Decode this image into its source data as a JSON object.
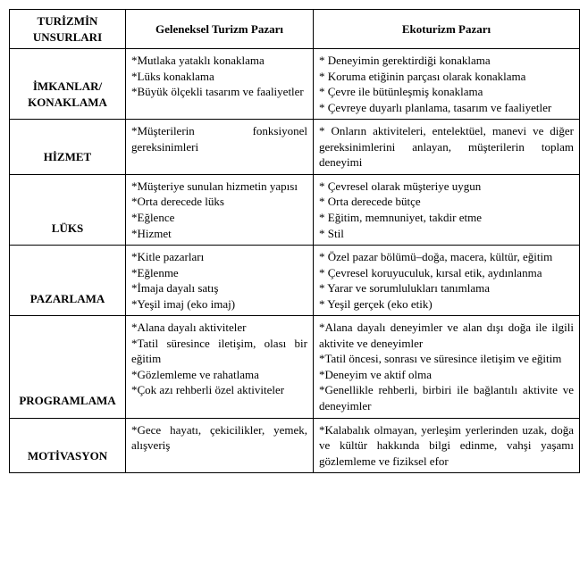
{
  "headers": {
    "col0": "TURİZMİN UNSURLARI",
    "col1": "Geleneksel Turizm Pazarı",
    "col2": "Ekoturizm Pazarı"
  },
  "rows": [
    {
      "label": "İMKANLAR/ KONAKLAMA",
      "trad": "*Mutlaka yataklı konaklama\n*Lüks konaklama\n*Büyük ölçekli tasarım ve faaliyetler",
      "eco": "* Deneyimin gerektirdiği konaklama\n* Koruma etiğinin parçası olarak konaklama\n* Çevre ile bütünleşmiş konaklama\n* Çevreye duyarlı planlama, tasarım ve faaliyetler"
    },
    {
      "label": "HİZMET",
      "trad": "*Müşterilerin fonksiyonel gereksinimleri",
      "eco": "* Onların aktiviteleri, entelektüel, manevi ve diğer gereksinimlerini anlayan, müşterilerin toplam deneyimi"
    },
    {
      "label": "LÜKS",
      "trad": "*Müşteriye sunulan hizmetin yapısı\n*Orta derecede lüks\n*Eğlence\n*Hizmet",
      "eco": "* Çevresel olarak müşteriye uygun\n* Orta derecede bütçe\n* Eğitim, memnuniyet, takdir etme\n* Stil"
    },
    {
      "label": "PAZARLAMA",
      "trad": "*Kitle pazarları\n*Eğlenme\n*İmaja dayalı satış\n*Yeşil imaj (eko imaj)",
      "eco": "* Özel pazar bölümü–doğa, macera, kültür, eğitim\n* Çevresel koruyuculuk, kırsal etik, aydınlanma\n* Yarar ve sorumlulukları tanımlama\n* Yeşil gerçek (eko etik)"
    },
    {
      "label": "PROGRAMLAMA",
      "trad": "*Alana dayalı aktiviteler\n*Tatil süresince iletişim, olası bir eğitim\n*Gözlemleme ve rahatlama\n*Çok azı rehberli özel aktiviteler",
      "eco": "*Alana dayalı deneyimler ve alan dışı doğa ile ilgili aktivite ve deneyimler\n*Tatil öncesi, sonrası ve süresince iletişim ve eğitim\n*Deneyim ve aktif olma\n*Genellikle rehberli, birbiri ile bağlantılı aktivite ve deneyimler"
    },
    {
      "label": "MOTİVASYON",
      "trad": "*Gece hayatı, çekicilikler, yemek, alışveriş",
      "eco": "*Kalabalık olmayan, yerleşim yerlerinden uzak, doğa ve kültür hakkında bilgi edinme, vahşi yaşamı gözlemleme ve fiziksel efor"
    }
  ]
}
